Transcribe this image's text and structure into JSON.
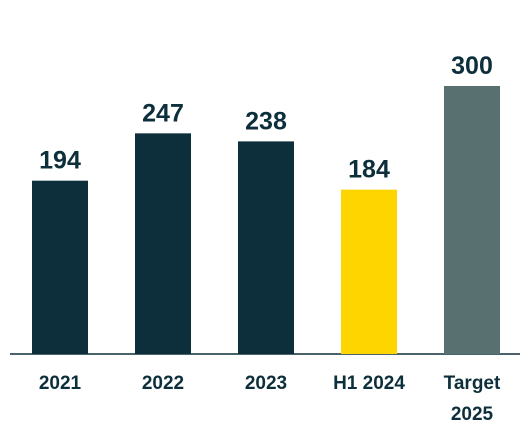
{
  "chart_data": {
    "type": "bar",
    "categories": [
      "2021",
      "2022",
      "2023",
      "H1 2024",
      "Target 2025"
    ],
    "values": [
      194,
      247,
      238,
      184,
      300
    ],
    "colors": [
      "#0d2f3b",
      "#0d2f3b",
      "#0d2f3b",
      "#ffd500",
      "#587170"
    ]
  }
}
